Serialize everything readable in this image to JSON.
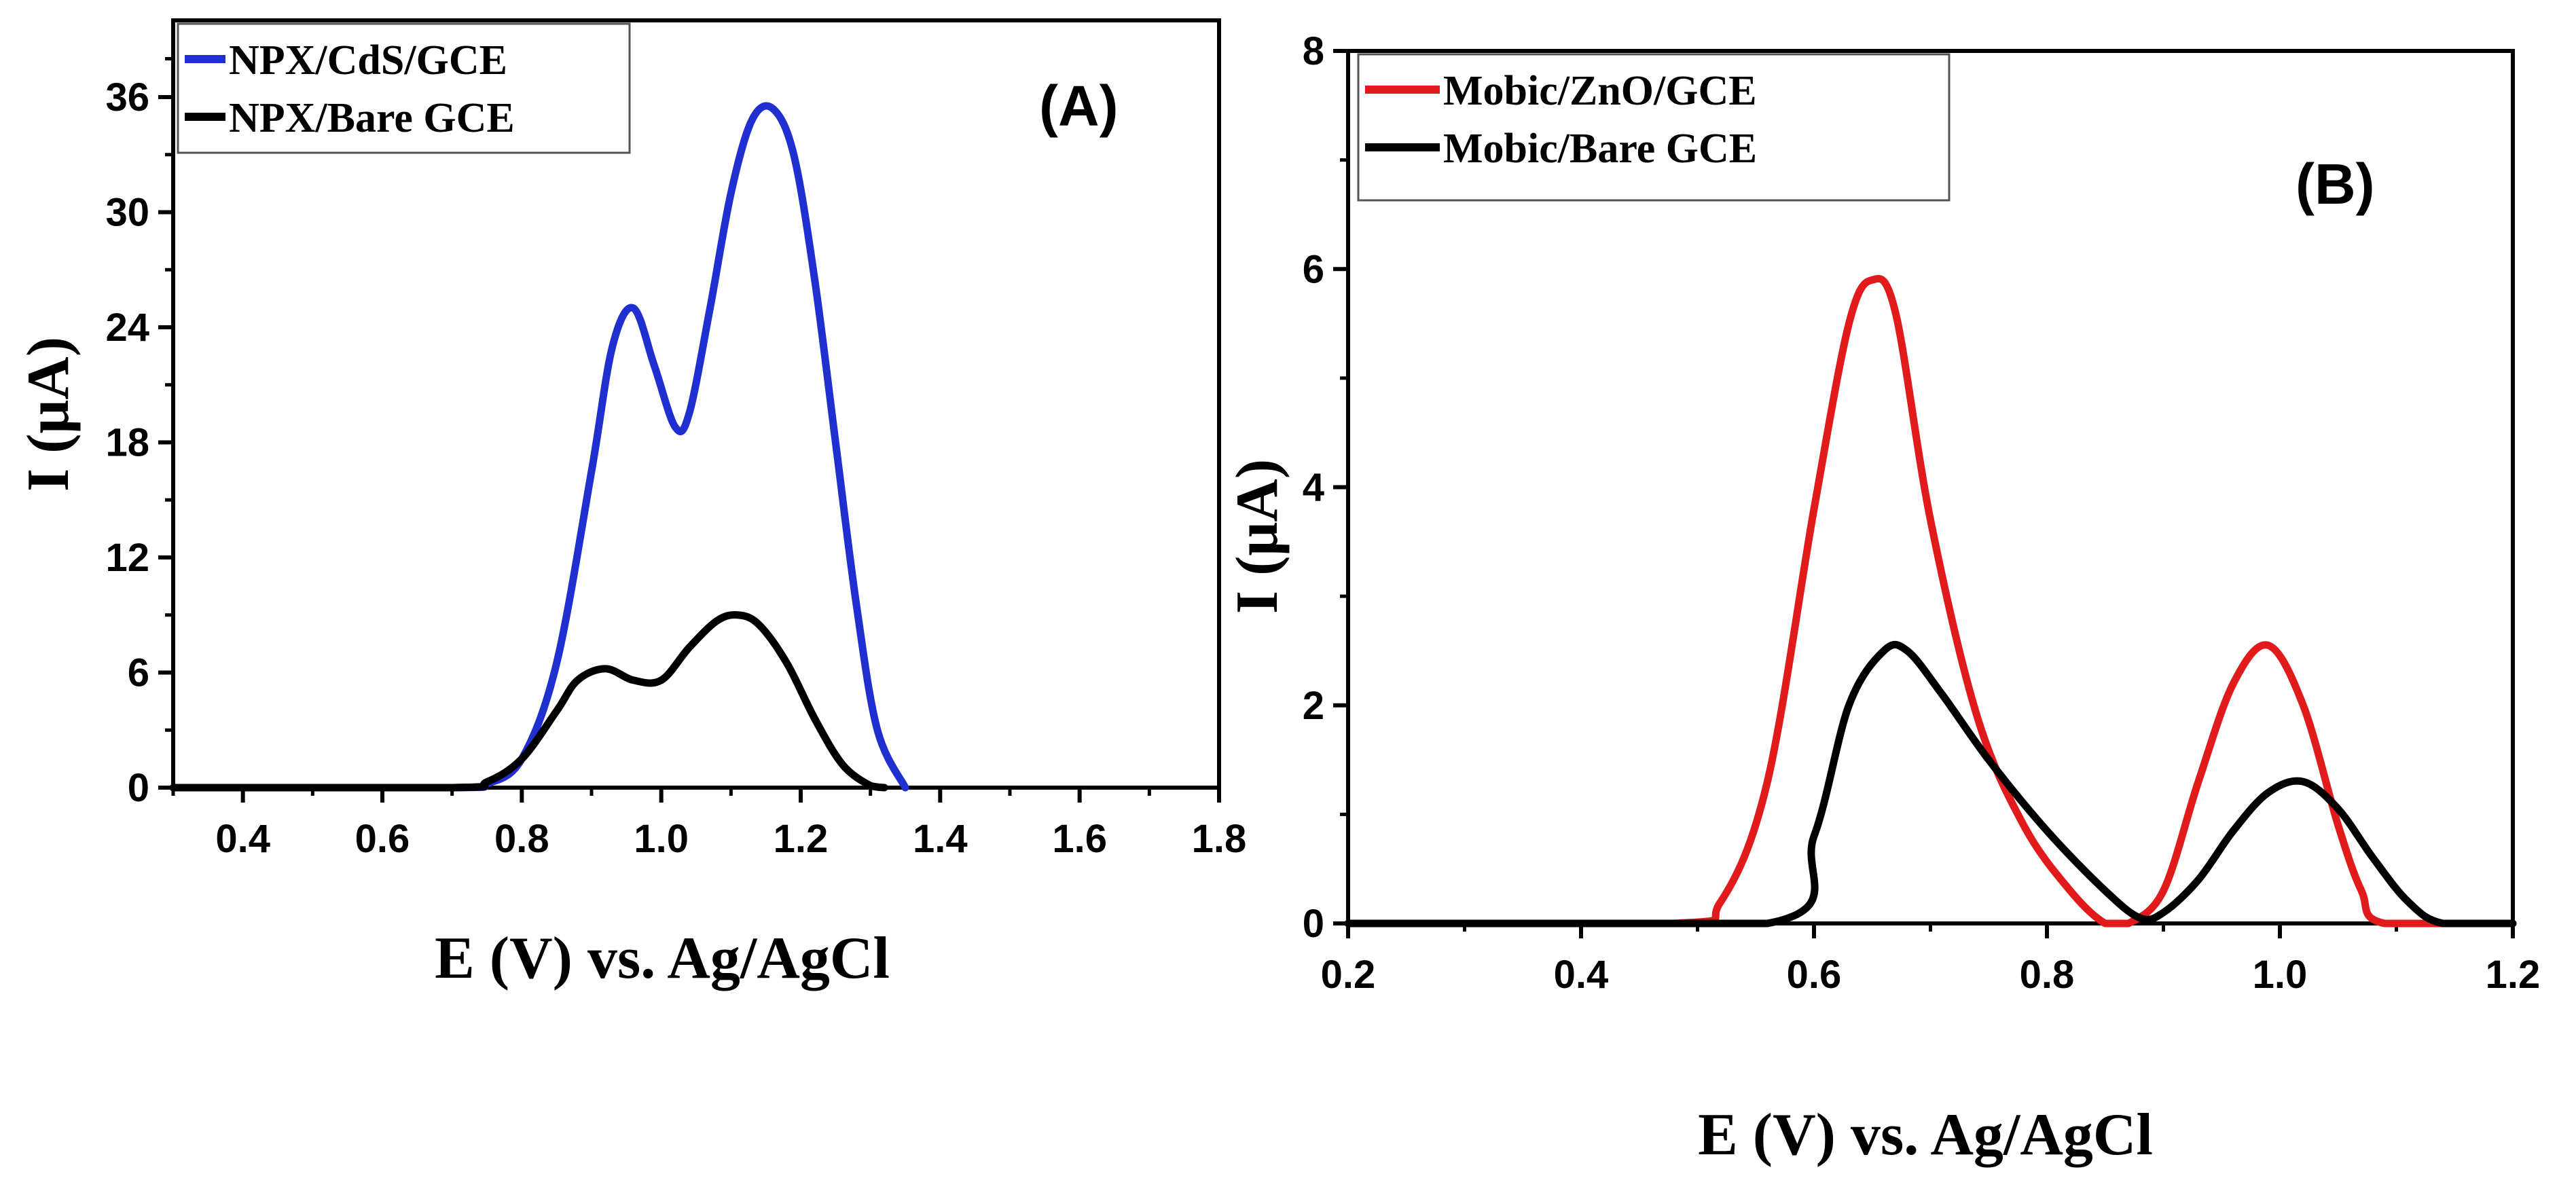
{
  "chart_data": [
    {
      "type": "line",
      "panel_label": "(A)",
      "xlabel": "E (V) vs. Ag/AgCl",
      "ylabel": "I (μA)",
      "xlim": [
        0.3,
        1.8
      ],
      "ylim": [
        0,
        40
      ],
      "xticks": [
        "0.4",
        "0.6",
        "0.8",
        "1.0",
        "1.2",
        "1.4",
        "1.6",
        "1.8"
      ],
      "yticks": [
        "0",
        "6",
        "12",
        "18",
        "24",
        "30",
        "36"
      ],
      "legend_position": "top-left",
      "series": [
        {
          "name": "NPX/CdS/GCE",
          "color": "#1f2fd0",
          "x": [
            0.3,
            0.7,
            0.75,
            0.8,
            0.85,
            0.9,
            0.93,
            0.96,
            0.99,
            1.02,
            1.04,
            1.07,
            1.1,
            1.13,
            1.16,
            1.19,
            1.22,
            1.25,
            1.28,
            1.31,
            1.35
          ],
          "y": [
            0,
            0,
            0.2,
            1.5,
            6.5,
            16.5,
            23.0,
            25.0,
            22.0,
            18.8,
            19.5,
            25.0,
            31.0,
            34.8,
            35.4,
            33.0,
            26.5,
            18.0,
            9.5,
            3.0,
            0
          ]
        },
        {
          "name": "NPX/Bare GCE",
          "color": "#000000",
          "x": [
            0.3,
            0.7,
            0.75,
            0.8,
            0.85,
            0.88,
            0.92,
            0.96,
            1.0,
            1.04,
            1.08,
            1.11,
            1.14,
            1.18,
            1.22,
            1.26,
            1.3,
            1.32
          ],
          "y": [
            0,
            0,
            0.3,
            1.5,
            4.0,
            5.6,
            6.2,
            5.6,
            5.6,
            7.3,
            8.7,
            9.0,
            8.5,
            6.5,
            3.6,
            1.2,
            0.1,
            0
          ]
        }
      ]
    },
    {
      "type": "line",
      "panel_label": "(B)",
      "xlabel": "E (V) vs. Ag/AgCl",
      "ylabel": "I (μA)",
      "xlim": [
        0.2,
        1.2
      ],
      "ylim": [
        0,
        8
      ],
      "xticks": [
        "0.2",
        "0.4",
        "0.6",
        "0.8",
        "1.0",
        "1.2"
      ],
      "yticks": [
        "0",
        "2",
        "4",
        "6",
        "8"
      ],
      "legend_position": "top-left",
      "series": [
        {
          "name": "Mobic/ZnO/GCE",
          "color": "#e11b1b",
          "x": [
            0.2,
            0.48,
            0.52,
            0.56,
            0.6,
            0.63,
            0.65,
            0.67,
            0.7,
            0.74,
            0.78,
            0.82,
            0.85,
            0.87,
            0.9,
            0.93,
            0.96,
            0.99,
            1.02,
            1.05,
            1.07,
            1.09,
            1.2
          ],
          "y": [
            0,
            0,
            0.2,
            1.3,
            3.8,
            5.5,
            5.9,
            5.6,
            3.7,
            1.9,
            0.9,
            0.3,
            0,
            0,
            0.3,
            1.3,
            2.2,
            2.55,
            2.0,
            0.9,
            0.3,
            0,
            0
          ]
        },
        {
          "name": "Mobic/Bare GCE",
          "color": "#000000",
          "x": [
            0.2,
            0.56,
            0.6,
            0.63,
            0.66,
            0.68,
            0.71,
            0.75,
            0.8,
            0.85,
            0.88,
            0.9,
            0.93,
            0.96,
            0.99,
            1.02,
            1.05,
            1.08,
            1.11,
            1.14,
            1.2
          ],
          "y": [
            0,
            0,
            0.8,
            2.0,
            2.5,
            2.5,
            2.1,
            1.5,
            0.85,
            0.3,
            0.05,
            0.1,
            0.4,
            0.85,
            1.2,
            1.3,
            1.05,
            0.6,
            0.2,
            0,
            0
          ]
        }
      ]
    }
  ]
}
